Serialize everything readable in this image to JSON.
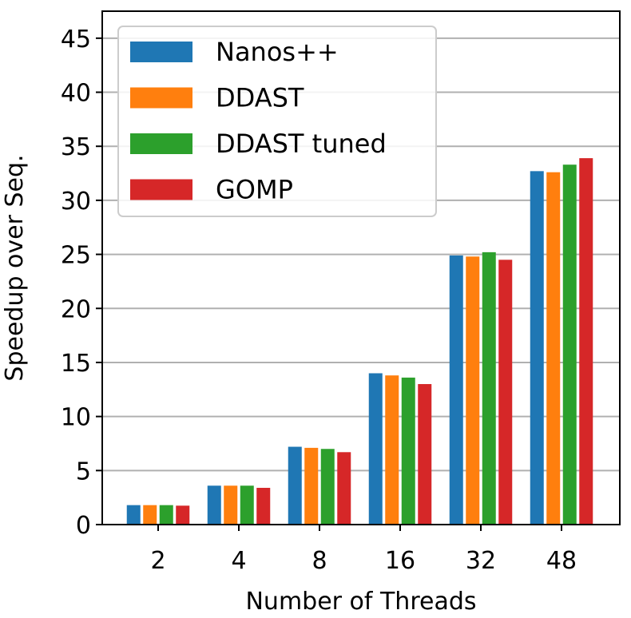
{
  "chart_data": {
    "type": "bar",
    "title": "",
    "xlabel": "Number of Threads",
    "ylabel": "Speedup over Seq.",
    "categories": [
      "2",
      "4",
      "8",
      "16",
      "32",
      "48"
    ],
    "ylim": [
      0,
      47.5
    ],
    "yticks": [
      0,
      5,
      10,
      15,
      20,
      25,
      30,
      35,
      40,
      45
    ],
    "grid": "horizontal",
    "legend_position": "top-left",
    "series": [
      {
        "name": "Nanos++",
        "color": "#1f77b4",
        "values": [
          1.8,
          3.6,
          7.2,
          14.0,
          24.9,
          32.7
        ]
      },
      {
        "name": "DDAST",
        "color": "#ff7f0e",
        "values": [
          1.8,
          3.6,
          7.1,
          13.8,
          24.8,
          32.6
        ]
      },
      {
        "name": "DDAST tuned",
        "color": "#2ca02c",
        "values": [
          1.8,
          3.6,
          7.0,
          13.6,
          25.2,
          33.3
        ]
      },
      {
        "name": "GOMP",
        "color": "#d62728",
        "values": [
          1.75,
          3.4,
          6.7,
          13.0,
          24.5,
          33.9
        ]
      }
    ]
  }
}
